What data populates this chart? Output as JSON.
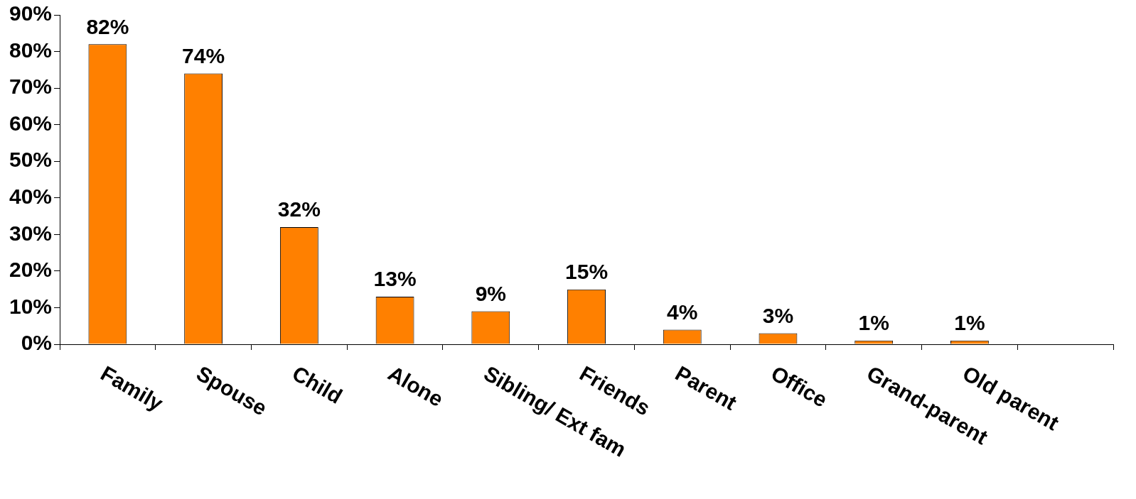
{
  "chart_data": {
    "type": "bar",
    "categories": [
      "Family",
      "Spouse",
      "Child",
      "Alone",
      "Sibling/ Ext fam",
      "Friends",
      "Parent",
      "Office",
      "Grand-parent",
      "Old parent",
      null
    ],
    "values": [
      82,
      74,
      32,
      13,
      9,
      15,
      4,
      3,
      1,
      1,
      null
    ],
    "value_labels": [
      "82%",
      "74%",
      "32%",
      "13%",
      "9%",
      "15%",
      "4%",
      "3%",
      "1%",
      "1%",
      null
    ],
    "color": "#ff8000",
    "ylim": [
      0,
      90
    ],
    "yticks": [
      {
        "value": 0,
        "label": "0%"
      },
      {
        "value": 10,
        "label": "10%"
      },
      {
        "value": 20,
        "label": "20%"
      },
      {
        "value": 30,
        "label": "30%"
      },
      {
        "value": 40,
        "label": "40%"
      },
      {
        "value": 50,
        "label": "50%"
      },
      {
        "value": 60,
        "label": "60%"
      },
      {
        "value": 70,
        "label": "70%"
      },
      {
        "value": 80,
        "label": "80%"
      },
      {
        "value": 90,
        "label": "90%"
      }
    ],
    "grid": false,
    "legend": false
  }
}
